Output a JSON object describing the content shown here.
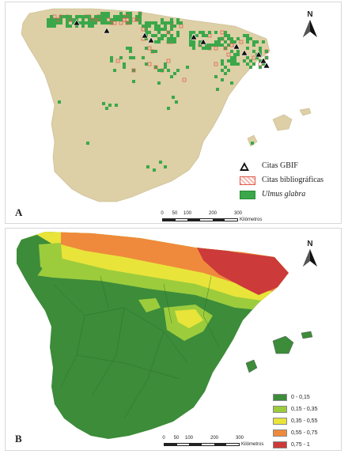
{
  "figure": {
    "panel_a": {
      "label": "A",
      "legend": [
        {
          "symbol": "triangle-marker",
          "label": "Citas GBIF",
          "italic": false
        },
        {
          "symbol": "hatched-square",
          "label": "Citas bibliográficas",
          "italic": false
        },
        {
          "symbol": "green-square",
          "label": "Ulmus glabra",
          "italic": true
        }
      ]
    },
    "panel_b": {
      "label": "B",
      "legend": [
        {
          "label": "0 - 0,15",
          "color": "#3c8c3a"
        },
        {
          "label": "0,15 - 0,35",
          "color": "#9ccc3c"
        },
        {
          "label": "0,35 - 0,55",
          "color": "#e8e43a"
        },
        {
          "label": "0,55 - 0,75",
          "color": "#ef8a3c"
        },
        {
          "label": "0,75 - 1",
          "color": "#cc3a3a"
        }
      ]
    },
    "north_label": "N",
    "scale": {
      "ticks": [
        "0",
        "50",
        "100",
        "200",
        "300"
      ],
      "unit": "Kilómetros"
    },
    "colors": {
      "land_panel_a": "#ddcfa6",
      "presence_green": "#3aa84a",
      "bibliographic_red": "#e0584a",
      "suitability_low": "#3c8c3a"
    }
  }
}
